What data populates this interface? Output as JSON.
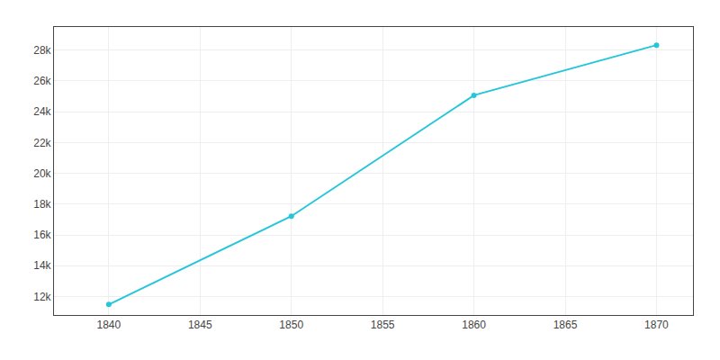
{
  "chart_data": {
    "type": "line",
    "x": [
      1840,
      1850,
      1860,
      1870
    ],
    "values": [
      11484,
      17216,
      25065,
      28323
    ],
    "color": "#26C6DA",
    "marker": "circle",
    "line_style": "solid",
    "xlim": [
      1837,
      1872
    ],
    "xticks": [
      1840,
      1845,
      1850,
      1855,
      1860,
      1865,
      1870
    ],
    "ylim": [
      10800,
      29500
    ],
    "yticks": [
      {
        "value": 12000,
        "label": "12k"
      },
      {
        "value": 14000,
        "label": "14k"
      },
      {
        "value": 16000,
        "label": "16k"
      },
      {
        "value": 18000,
        "label": "18k"
      },
      {
        "value": 20000,
        "label": "20k"
      },
      {
        "value": 22000,
        "label": "22k"
      },
      {
        "value": 24000,
        "label": "24k"
      },
      {
        "value": 26000,
        "label": "26k"
      },
      {
        "value": 28000,
        "label": "28k"
      }
    ],
    "grid": true
  }
}
